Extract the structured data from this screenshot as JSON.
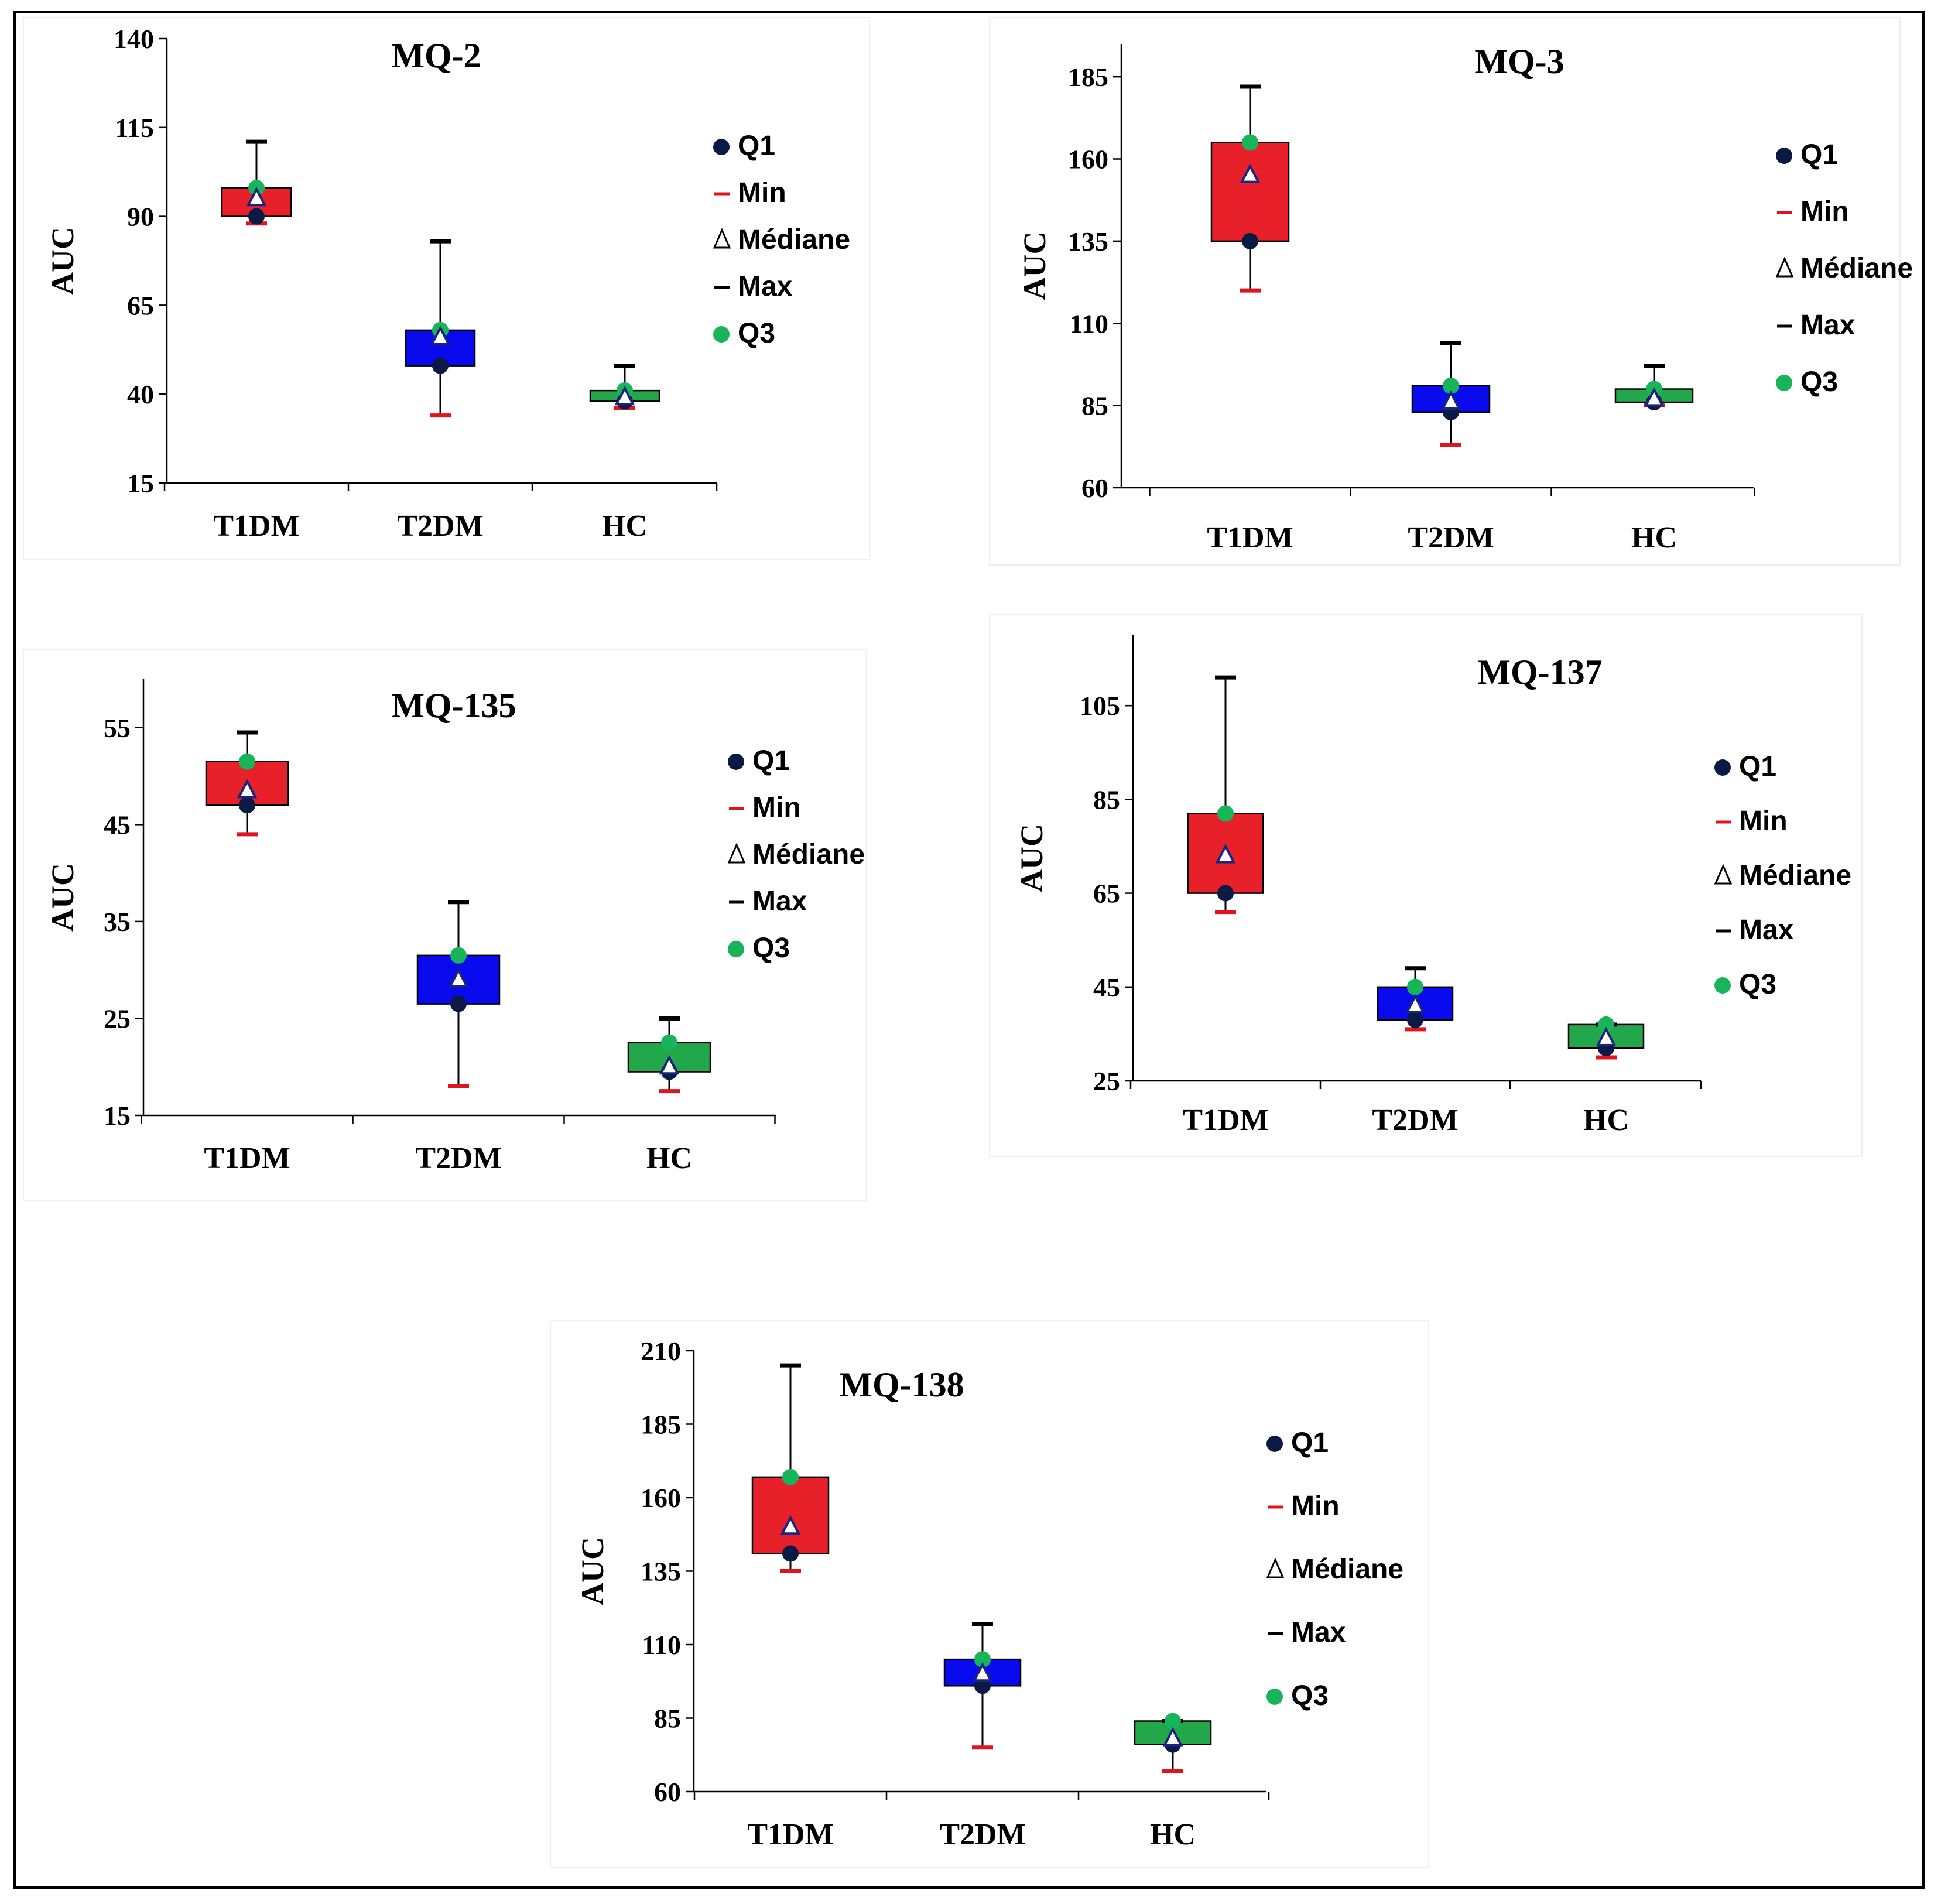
{
  "figure": {
    "legend_labels": {
      "q1": "Q1",
      "min": "Min",
      "median": "Médiane",
      "max": "Max",
      "q3": "Q3"
    },
    "legend_colors": {
      "q1": "#0b1a45",
      "min": "#e0141e",
      "median": "#ffffff",
      "max": "#000000",
      "q3": "#17b45a"
    },
    "group_colors": {
      "T1DM": "#e8202a",
      "T2DM": "#0a0aee",
      "HC": "#22a84a"
    }
  },
  "chart_data": [
    {
      "id": "mq2",
      "type": "box",
      "title": "MQ-2",
      "ylabel": "AUC",
      "ylim": [
        15,
        140
      ],
      "yticks": [
        "15",
        "40",
        "65",
        "90",
        "115",
        "140"
      ],
      "categories": [
        "T1DM",
        "T2DM",
        "HC"
      ],
      "series": [
        {
          "name": "T1DM",
          "min": 88,
          "q1": 90,
          "median": 95,
          "q3": 98,
          "max": 111
        },
        {
          "name": "T2DM",
          "min": 34,
          "q1": 48,
          "median": 56,
          "q3": 58,
          "max": 83
        },
        {
          "name": "HC",
          "min": 36,
          "q1": 38,
          "median": 39,
          "q3": 41,
          "max": 48
        }
      ]
    },
    {
      "id": "mq3",
      "type": "box",
      "title": "MQ-3",
      "ylabel": "AUC",
      "ylim": [
        60,
        195
      ],
      "yticks": [
        "60",
        "85",
        "110",
        "135",
        "160",
        "185"
      ],
      "categories": [
        "T1DM",
        "T2DM",
        "HC"
      ],
      "series": [
        {
          "name": "T1DM",
          "min": 120,
          "q1": 135,
          "median": 155,
          "q3": 165,
          "max": 182
        },
        {
          "name": "T2DM",
          "min": 73,
          "q1": 83,
          "median": 86,
          "q3": 91,
          "max": 104
        },
        {
          "name": "HC",
          "min": 85,
          "q1": 86,
          "median": 87,
          "q3": 90,
          "max": 97
        }
      ]
    },
    {
      "id": "mq135",
      "type": "box",
      "title": "MQ-135",
      "ylabel": "AUC",
      "ylim": [
        15,
        60
      ],
      "yticks": [
        "15",
        "25",
        "35",
        "45",
        "55"
      ],
      "categories": [
        "T1DM",
        "T2DM",
        "HC"
      ],
      "series": [
        {
          "name": "T1DM",
          "min": 44,
          "q1": 47,
          "median": 48.5,
          "q3": 51.5,
          "max": 54.5
        },
        {
          "name": "T2DM",
          "min": 18,
          "q1": 26.5,
          "median": 29,
          "q3": 31.5,
          "max": 37
        },
        {
          "name": "HC",
          "min": 17.5,
          "q1": 19.5,
          "median": 20,
          "q3": 22.5,
          "max": 25
        }
      ]
    },
    {
      "id": "mq137",
      "type": "box",
      "title": "MQ-137",
      "ylabel": "AUC",
      "ylim": [
        25,
        120
      ],
      "yticks": [
        "25",
        "45",
        "65",
        "85",
        "105"
      ],
      "categories": [
        "T1DM",
        "T2DM",
        "HC"
      ],
      "series": [
        {
          "name": "T1DM",
          "min": 61,
          "q1": 65,
          "median": 73,
          "q3": 82,
          "max": 111
        },
        {
          "name": "T2DM",
          "min": 36,
          "q1": 38,
          "median": 41,
          "q3": 45,
          "max": 49
        },
        {
          "name": "HC",
          "min": 30,
          "q1": 32,
          "median": 34,
          "q3": 37,
          "max": 37
        }
      ]
    },
    {
      "id": "mq138",
      "type": "box",
      "title": "MQ-138",
      "ylabel": "AUC",
      "ylim": [
        60,
        210
      ],
      "yticks": [
        "60",
        "85",
        "110",
        "135",
        "160",
        "185",
        "210"
      ],
      "categories": [
        "T1DM",
        "T2DM",
        "HC"
      ],
      "series": [
        {
          "name": "T1DM",
          "min": 135,
          "q1": 141,
          "median": 150,
          "q3": 167,
          "max": 205
        },
        {
          "name": "T2DM",
          "min": 75,
          "q1": 96,
          "median": 100,
          "q3": 105,
          "max": 117
        },
        {
          "name": "HC",
          "min": 67,
          "q1": 76,
          "median": 78,
          "q3": 84,
          "max": 84
        }
      ]
    }
  ]
}
